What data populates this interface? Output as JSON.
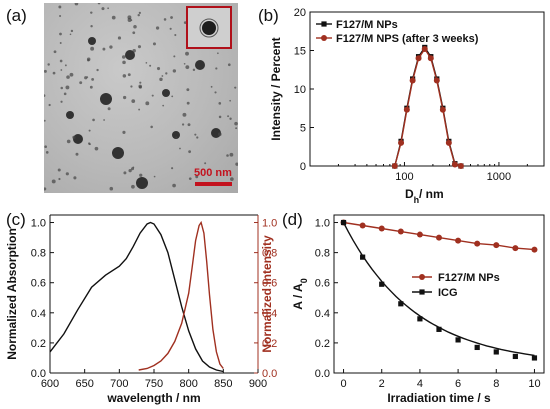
{
  "panels": {
    "a": {
      "letter": "(a)",
      "scale_label": "500 nm"
    },
    "b": {
      "letter": "(b)"
    },
    "c": {
      "letter": "(c)"
    },
    "d": {
      "letter": "(d)"
    }
  },
  "colors": {
    "black": "#111111",
    "red": "#a03020",
    "scale_red": "#c3121e"
  },
  "chart_data": [
    {
      "type": "line",
      "panel": "b",
      "xlabel": "D_h / nm",
      "ylabel": "Intensity / Percent",
      "xscale": "log",
      "xlim": [
        10,
        3000
      ],
      "ylim": [
        0,
        20
      ],
      "xticks": [
        100,
        1000
      ],
      "xtick_labels": [
        "100",
        "1000"
      ],
      "yticks": [
        0,
        5,
        10,
        15,
        20
      ],
      "legend_position": "top-left",
      "series": [
        {
          "name": "F127/M NPs",
          "marker": "square",
          "color": "#111111",
          "x": [
            79,
            92,
            106,
            122,
            141,
            164,
            190,
            220,
            255,
            295,
            342,
            396
          ],
          "y": [
            0,
            3.2,
            7.5,
            11.3,
            14.2,
            15.4,
            14.2,
            11.3,
            7.5,
            3.2,
            0.3,
            0
          ]
        },
        {
          "name": "F127/M NPS (after 3 weeks)",
          "marker": "circle",
          "color": "#a03020",
          "x": [
            79,
            92,
            106,
            122,
            141,
            164,
            190,
            220,
            255,
            295,
            342,
            396
          ],
          "y": [
            0,
            3.0,
            7.3,
            11.1,
            14.0,
            15.2,
            14.0,
            11.1,
            7.3,
            3.0,
            0.2,
            0
          ]
        }
      ]
    },
    {
      "type": "line",
      "panel": "c",
      "xlabel": "wavelength / nm",
      "ylabel": "Normalized Absorption",
      "ylabel_right": "Normalized Intensity",
      "xlim": [
        600,
        900
      ],
      "ylim": [
        0,
        1.05
      ],
      "xticks": [
        600,
        650,
        700,
        750,
        800,
        850,
        900
      ],
      "yticks": [
        0.0,
        0.2,
        0.4,
        0.6,
        0.8,
        1.0
      ],
      "ytick_labels": [
        "0.0",
        "0.2",
        "0.4",
        "0.6",
        "0.8",
        "1.0"
      ],
      "series": [
        {
          "name": "",
          "color": "#111111",
          "x": [
            600,
            620,
            640,
            660,
            680,
            700,
            710,
            720,
            730,
            740,
            745,
            750,
            760,
            770,
            780,
            790,
            800,
            810,
            820,
            830,
            840,
            850
          ],
          "y": [
            0.14,
            0.26,
            0.42,
            0.57,
            0.65,
            0.71,
            0.76,
            0.84,
            0.93,
            0.99,
            1.0,
            0.99,
            0.92,
            0.8,
            0.62,
            0.44,
            0.28,
            0.16,
            0.08,
            0.04,
            0.02,
            0.01
          ]
        },
        {
          "name": "",
          "color": "#a03020",
          "axis": "right",
          "x": [
            728,
            740,
            750,
            760,
            770,
            780,
            790,
            800,
            805,
            810,
            815,
            818,
            822,
            826,
            830,
            835,
            840,
            845,
            850
          ],
          "y": [
            0.02,
            0.03,
            0.05,
            0.08,
            0.13,
            0.21,
            0.33,
            0.53,
            0.7,
            0.88,
            0.98,
            1.0,
            0.93,
            0.74,
            0.52,
            0.29,
            0.14,
            0.06,
            0.03
          ]
        }
      ]
    },
    {
      "type": "line",
      "panel": "d",
      "xlabel": "Irradiation time / s",
      "ylabel": "A / A_0",
      "xlim": [
        -0.5,
        10.5
      ],
      "ylim": [
        0,
        1.05
      ],
      "xticks": [
        0,
        2,
        4,
        6,
        8,
        10
      ],
      "yticks": [
        0.0,
        0.2,
        0.4,
        0.6,
        0.8,
        1.0
      ],
      "ytick_labels": [
        "0.0",
        "0.2",
        "0.4",
        "0.6",
        "0.8",
        "1.0"
      ],
      "legend_position": "right-middle",
      "series": [
        {
          "name": "F127/M NPs",
          "marker": "circle",
          "color": "#a03020",
          "x": [
            0,
            1,
            2,
            3,
            4,
            5,
            6,
            7,
            8,
            9,
            10
          ],
          "y": [
            1.0,
            0.98,
            0.96,
            0.94,
            0.92,
            0.9,
            0.88,
            0.86,
            0.85,
            0.83,
            0.82
          ]
        },
        {
          "name": "ICG",
          "marker": "square",
          "color": "#111111",
          "x": [
            0,
            1,
            2,
            3,
            4,
            5,
            6,
            7,
            8,
            9,
            10
          ],
          "y": [
            1.0,
            0.77,
            0.59,
            0.46,
            0.36,
            0.29,
            0.22,
            0.17,
            0.14,
            0.11,
            0.1
          ]
        }
      ]
    }
  ]
}
